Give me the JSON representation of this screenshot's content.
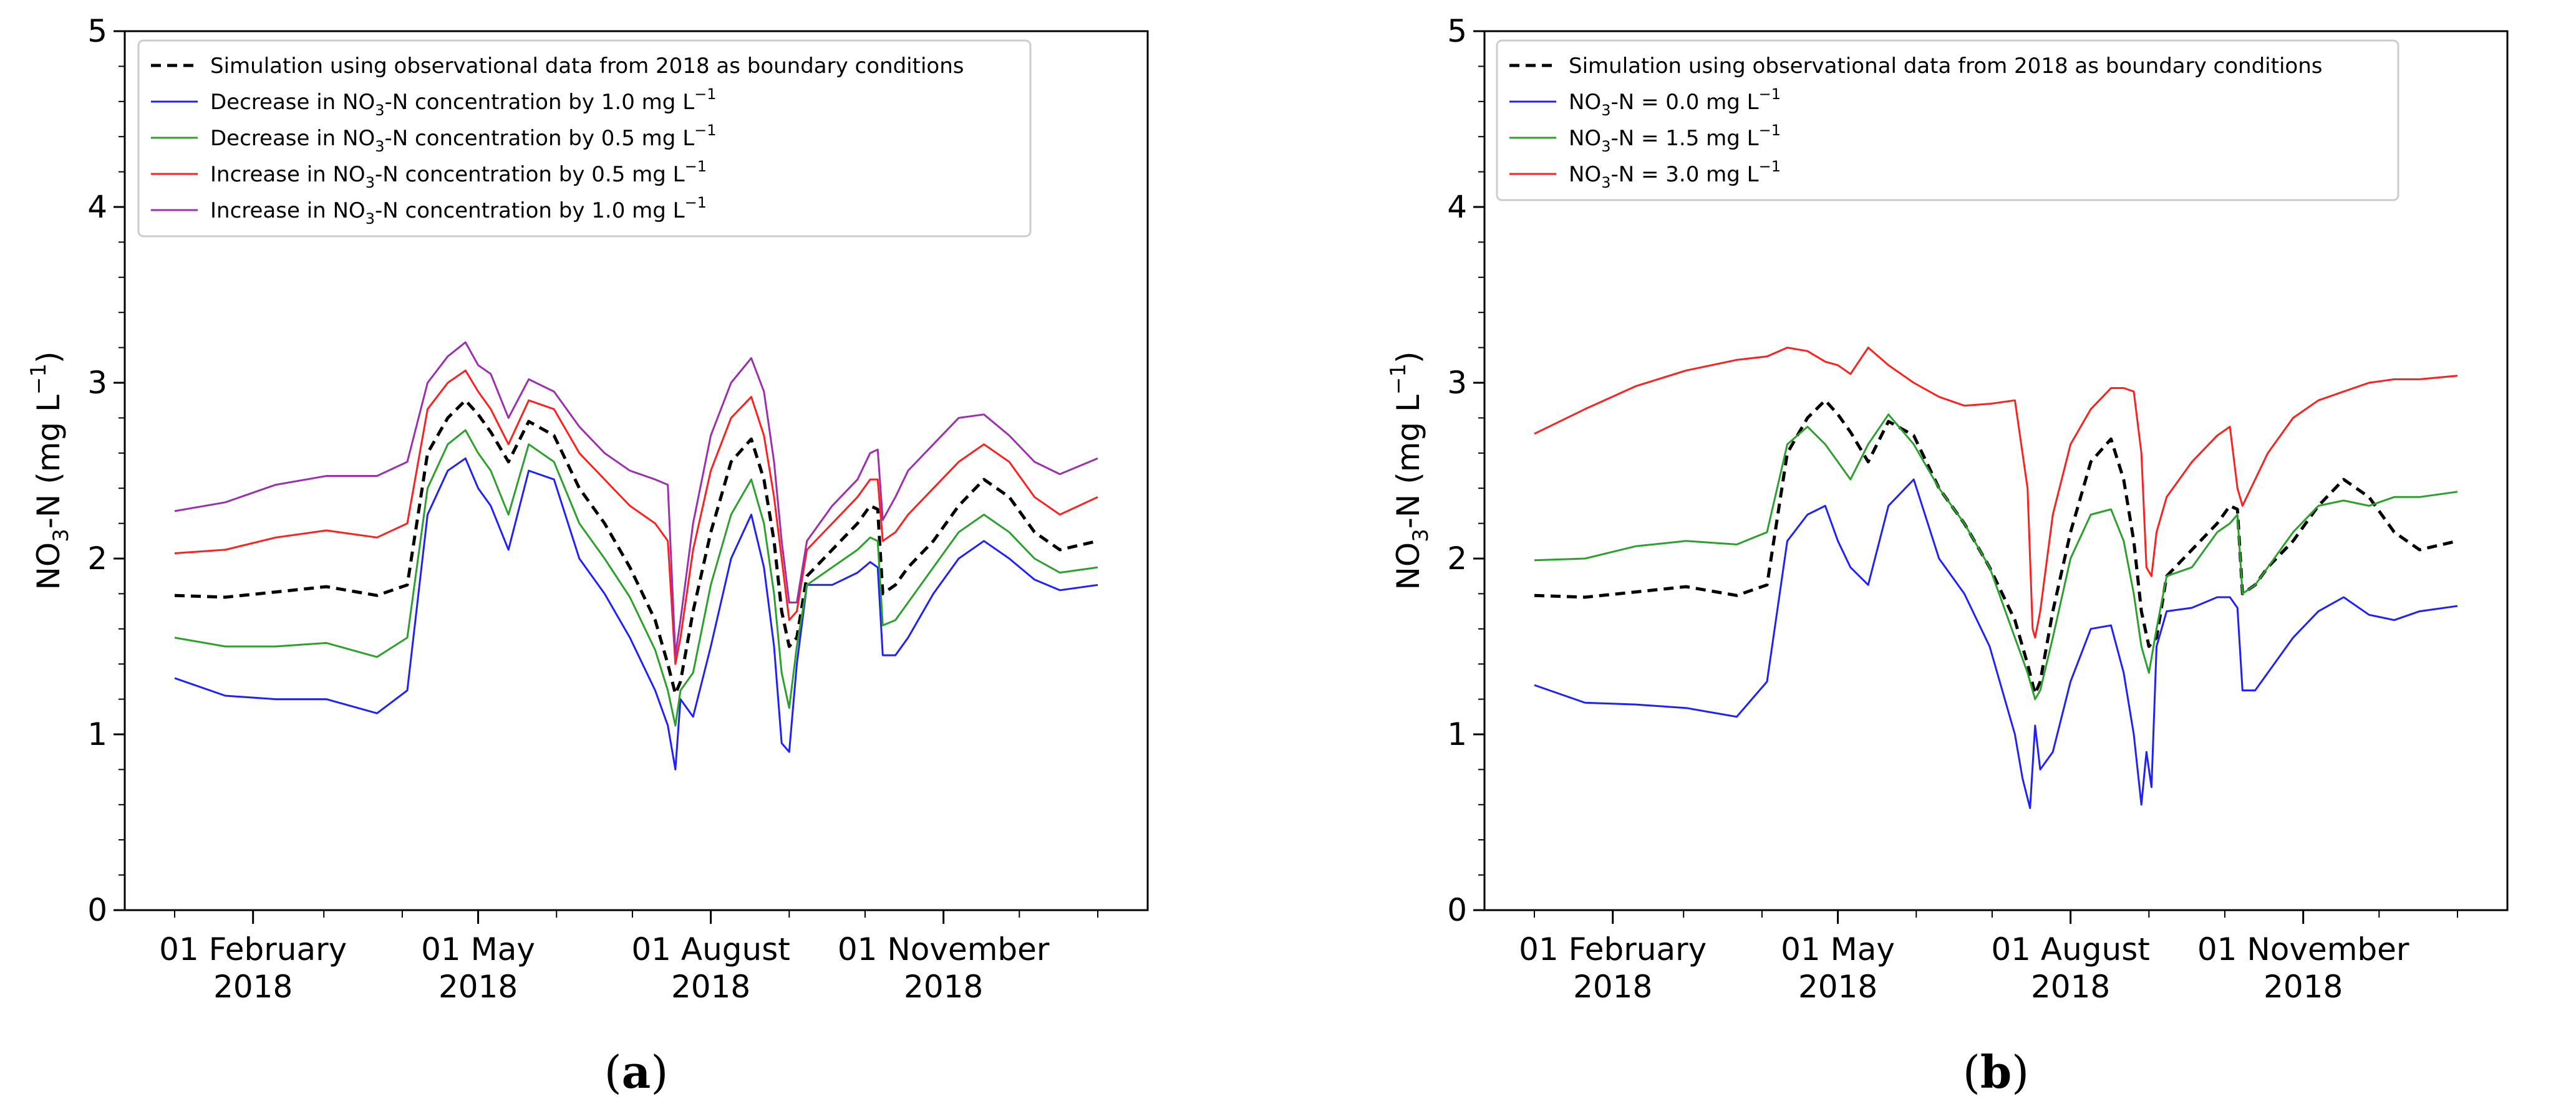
{
  "chart_data": [
    {
      "type": "line",
      "panel": "a",
      "panel_label_open": "(",
      "panel_label_letter": "a",
      "panel_label_close": ")",
      "ylabel": "NO3-N (mg L-1)",
      "ylabel_parts": {
        "a": "NO",
        "b": "3",
        "c": "-N (mg L",
        "d": "−1",
        "e": ")"
      },
      "ylim": [
        0,
        5
      ],
      "yticks": [
        "0",
        "1",
        "2",
        "3",
        "4",
        "5"
      ],
      "x_unit": "day of year 2018",
      "xlim": [
        0,
        365
      ],
      "xticks": [
        {
          "day": 31,
          "line1": "01 February",
          "line2": "2018"
        },
        {
          "day": 120,
          "line1": "01 May",
          "line2": "2018"
        },
        {
          "day": 212,
          "line1": "01 August",
          "line2": "2018"
        },
        {
          "day": 304,
          "line1": "01 November",
          "line2": "2018"
        }
      ],
      "legend": [
        {
          "series": "baseline",
          "pre": "Simulation using observational data from 2018 as boundary conditions",
          "sub": "",
          "post": "",
          "sup": ""
        },
        {
          "series": "dec10",
          "pre": "Decrease in NO",
          "sub": "3",
          "post": "-N concentration by 1.0 mg L",
          "sup": "−1"
        },
        {
          "series": "dec05",
          "pre": "Decrease in NO",
          "sub": "3",
          "post": "-N concentration by 0.5 mg L",
          "sup": "−1"
        },
        {
          "series": "inc05",
          "pre": "Increase in NO",
          "sub": "3",
          "post": "-N concentration by 0.5 mg L",
          "sup": "−1"
        },
        {
          "series": "inc10",
          "pre": "Increase in NO",
          "sub": "3",
          "post": "-N concentration by 1.0 mg L",
          "sup": "−1"
        }
      ],
      "series": [
        {
          "id": "baseline",
          "name": "Simulation using observational data from 2018 as boundary conditions",
          "color": "#000000",
          "dash": true,
          "x": [
            0,
            20,
            40,
            60,
            80,
            92,
            100,
            108,
            115,
            120,
            125,
            132,
            140,
            150,
            160,
            170,
            180,
            190,
            195,
            198,
            200,
            205,
            212,
            220,
            228,
            233,
            237,
            240,
            243,
            246,
            250,
            260,
            270,
            275,
            278,
            280,
            285,
            290,
            300,
            310,
            320,
            330,
            340,
            350,
            365
          ],
          "y": [
            1.79,
            1.78,
            1.81,
            1.84,
            1.79,
            1.85,
            2.6,
            2.8,
            2.9,
            2.82,
            2.72,
            2.55,
            2.78,
            2.7,
            2.4,
            2.2,
            1.95,
            1.65,
            1.4,
            1.23,
            1.3,
            1.7,
            2.15,
            2.55,
            2.68,
            2.45,
            2.1,
            1.7,
            1.5,
            1.55,
            1.9,
            2.05,
            2.2,
            2.3,
            2.28,
            1.8,
            1.85,
            1.95,
            2.1,
            2.3,
            2.45,
            2.35,
            2.15,
            2.05,
            2.1
          ]
        },
        {
          "id": "dec10",
          "name": "Decrease in NO3-N concentration by 1.0 mg L-1",
          "color": "#1f1fff",
          "dash": false,
          "x": [
            0,
            20,
            40,
            60,
            80,
            92,
            100,
            108,
            115,
            120,
            125,
            132,
            140,
            150,
            160,
            170,
            180,
            190,
            195,
            198,
            200,
            205,
            212,
            220,
            228,
            233,
            237,
            240,
            243,
            246,
            250,
            260,
            270,
            275,
            278,
            280,
            285,
            290,
            300,
            310,
            320,
            330,
            340,
            350,
            365
          ],
          "y": [
            1.32,
            1.22,
            1.2,
            1.2,
            1.12,
            1.25,
            2.25,
            2.5,
            2.57,
            2.4,
            2.3,
            2.05,
            2.5,
            2.45,
            2.0,
            1.8,
            1.55,
            1.25,
            1.05,
            0.8,
            1.2,
            1.1,
            1.5,
            2.0,
            2.25,
            1.95,
            1.5,
            0.95,
            0.9,
            1.4,
            1.85,
            1.85,
            1.92,
            1.98,
            1.95,
            1.45,
            1.45,
            1.55,
            1.8,
            2.0,
            2.1,
            2.0,
            1.88,
            1.82,
            1.85
          ]
        },
        {
          "id": "dec05",
          "name": "Decrease in NO3-N concentration by 0.5 mg L-1",
          "color": "#2ca02c",
          "dash": false,
          "x": [
            0,
            20,
            40,
            60,
            80,
            92,
            100,
            108,
            115,
            120,
            125,
            132,
            140,
            150,
            160,
            170,
            180,
            190,
            195,
            198,
            200,
            205,
            212,
            220,
            228,
            233,
            237,
            240,
            243,
            246,
            250,
            260,
            270,
            275,
            278,
            280,
            285,
            290,
            300,
            310,
            320,
            330,
            340,
            350,
            365
          ],
          "y": [
            1.55,
            1.5,
            1.5,
            1.52,
            1.44,
            1.55,
            2.4,
            2.65,
            2.73,
            2.6,
            2.5,
            2.25,
            2.65,
            2.55,
            2.2,
            2.0,
            1.78,
            1.48,
            1.25,
            1.05,
            1.25,
            1.35,
            1.85,
            2.25,
            2.45,
            2.2,
            1.8,
            1.35,
            1.15,
            1.5,
            1.85,
            1.95,
            2.05,
            2.12,
            2.1,
            1.62,
            1.65,
            1.75,
            1.95,
            2.15,
            2.25,
            2.15,
            2.0,
            1.92,
            1.95
          ]
        },
        {
          "id": "inc05",
          "name": "Increase in NO3-N concentration by 0.5 mg L-1",
          "color": "#ff1f1f",
          "dash": false,
          "x": [
            0,
            20,
            40,
            60,
            80,
            92,
            100,
            108,
            115,
            120,
            125,
            132,
            140,
            150,
            160,
            170,
            180,
            190,
            195,
            198,
            200,
            205,
            212,
            220,
            228,
            233,
            237,
            240,
            243,
            246,
            250,
            260,
            270,
            275,
            278,
            280,
            285,
            290,
            300,
            310,
            320,
            330,
            340,
            350,
            365
          ],
          "y": [
            2.03,
            2.05,
            2.12,
            2.16,
            2.12,
            2.2,
            2.85,
            3.0,
            3.07,
            2.95,
            2.85,
            2.65,
            2.9,
            2.85,
            2.6,
            2.45,
            2.3,
            2.2,
            2.1,
            1.4,
            1.55,
            2.05,
            2.5,
            2.8,
            2.92,
            2.7,
            2.35,
            2.0,
            1.65,
            1.7,
            2.05,
            2.2,
            2.35,
            2.45,
            2.45,
            2.1,
            2.15,
            2.25,
            2.4,
            2.55,
            2.65,
            2.55,
            2.35,
            2.25,
            2.35
          ]
        },
        {
          "id": "inc10",
          "name": "Increase in NO3-N concentration by 1.0 mg L-1",
          "color": "#9b2fae",
          "dash": false,
          "x": [
            0,
            20,
            40,
            60,
            80,
            92,
            100,
            108,
            115,
            120,
            125,
            132,
            140,
            150,
            160,
            170,
            180,
            190,
            195,
            198,
            200,
            205,
            212,
            220,
            228,
            233,
            237,
            240,
            243,
            246,
            250,
            260,
            270,
            275,
            278,
            280,
            285,
            290,
            300,
            310,
            320,
            330,
            340,
            350,
            365
          ],
          "y": [
            2.27,
            2.32,
            2.42,
            2.47,
            2.47,
            2.55,
            3.0,
            3.15,
            3.23,
            3.1,
            3.05,
            2.8,
            3.02,
            2.95,
            2.75,
            2.6,
            2.5,
            2.45,
            2.42,
            1.45,
            1.65,
            2.2,
            2.7,
            3.0,
            3.14,
            2.95,
            2.55,
            2.1,
            1.75,
            1.75,
            2.1,
            2.3,
            2.45,
            2.6,
            2.62,
            2.22,
            2.35,
            2.5,
            2.65,
            2.8,
            2.82,
            2.7,
            2.55,
            2.48,
            2.57
          ]
        }
      ]
    },
    {
      "type": "line",
      "panel": "b",
      "panel_label_open": "(",
      "panel_label_letter": "b",
      "panel_label_close": ")",
      "ylabel": "NO3-N (mg L-1)",
      "ylabel_parts": {
        "a": "NO",
        "b": "3",
        "c": "-N (mg L",
        "d": "−1",
        "e": ")"
      },
      "ylim": [
        0,
        5
      ],
      "yticks": [
        "0",
        "1",
        "2",
        "3",
        "4",
        "5"
      ],
      "x_unit": "day of year 2018",
      "xlim": [
        0,
        365
      ],
      "xticks": [
        {
          "day": 31,
          "line1": "01 February",
          "line2": "2018"
        },
        {
          "day": 120,
          "line1": "01 May",
          "line2": "2018"
        },
        {
          "day": 212,
          "line1": "01 August",
          "line2": "2018"
        },
        {
          "day": 304,
          "line1": "01 November",
          "line2": "2018"
        }
      ],
      "legend": [
        {
          "series": "baseline",
          "pre": "Simulation using observational data from 2018 as boundary conditions",
          "sub": "",
          "post": "",
          "sup": ""
        },
        {
          "series": "c00",
          "pre": "NO",
          "sub": "3",
          "post": "-N = 0.0 mg L",
          "sup": "−1"
        },
        {
          "series": "c15",
          "pre": "NO",
          "sub": "3",
          "post": "-N = 1.5 mg L",
          "sup": "−1"
        },
        {
          "series": "c30",
          "pre": "NO",
          "sub": "3",
          "post": "-N = 3.0 mg L",
          "sup": "−1"
        }
      ],
      "series": [
        {
          "id": "baseline",
          "name": "Simulation using observational data from 2018 as boundary conditions",
          "color": "#000000",
          "dash": true,
          "x": [
            0,
            20,
            40,
            60,
            80,
            92,
            100,
            108,
            115,
            120,
            125,
            132,
            140,
            150,
            160,
            170,
            180,
            190,
            195,
            198,
            200,
            205,
            212,
            220,
            228,
            233,
            237,
            240,
            243,
            246,
            250,
            260,
            270,
            275,
            278,
            280,
            285,
            290,
            300,
            310,
            320,
            330,
            340,
            350,
            365
          ],
          "y": [
            1.79,
            1.78,
            1.81,
            1.84,
            1.79,
            1.85,
            2.6,
            2.8,
            2.9,
            2.82,
            2.72,
            2.55,
            2.78,
            2.7,
            2.4,
            2.2,
            1.95,
            1.65,
            1.4,
            1.23,
            1.3,
            1.7,
            2.15,
            2.55,
            2.68,
            2.45,
            2.1,
            1.7,
            1.5,
            1.55,
            1.9,
            2.05,
            2.2,
            2.3,
            2.28,
            1.8,
            1.85,
            1.95,
            2.1,
            2.3,
            2.45,
            2.35,
            2.15,
            2.05,
            2.1
          ]
        },
        {
          "id": "c00",
          "name": "NO3-N = 0.0 mg L-1",
          "color": "#1f1fff",
          "dash": false,
          "x": [
            0,
            20,
            40,
            60,
            80,
            92,
            100,
            108,
            115,
            120,
            125,
            132,
            140,
            150,
            160,
            170,
            180,
            190,
            193,
            196,
            198,
            200,
            205,
            212,
            220,
            228,
            233,
            237,
            240,
            242,
            244,
            246,
            250,
            260,
            270,
            275,
            278,
            280,
            285,
            290,
            300,
            310,
            320,
            330,
            340,
            350,
            365
          ],
          "y": [
            1.28,
            1.18,
            1.17,
            1.15,
            1.1,
            1.3,
            2.1,
            2.25,
            2.3,
            2.1,
            1.95,
            1.85,
            2.3,
            2.45,
            2.0,
            1.8,
            1.5,
            1.0,
            0.75,
            0.58,
            1.05,
            0.8,
            0.9,
            1.3,
            1.6,
            1.62,
            1.35,
            1.0,
            0.6,
            0.9,
            0.7,
            1.5,
            1.7,
            1.72,
            1.78,
            1.78,
            1.72,
            1.25,
            1.25,
            1.35,
            1.55,
            1.7,
            1.78,
            1.68,
            1.65,
            1.7,
            1.73
          ]
        },
        {
          "id": "c15",
          "name": "NO3-N = 1.5 mg L-1",
          "color": "#2ca02c",
          "dash": false,
          "x": [
            0,
            20,
            40,
            60,
            80,
            92,
            100,
            108,
            115,
            120,
            125,
            132,
            140,
            150,
            160,
            170,
            180,
            190,
            195,
            198,
            200,
            205,
            212,
            220,
            228,
            233,
            237,
            240,
            243,
            246,
            250,
            260,
            270,
            275,
            278,
            280,
            285,
            290,
            300,
            310,
            320,
            330,
            340,
            350,
            365
          ],
          "y": [
            1.99,
            2.0,
            2.07,
            2.1,
            2.08,
            2.15,
            2.65,
            2.75,
            2.65,
            2.55,
            2.45,
            2.65,
            2.82,
            2.65,
            2.4,
            2.2,
            1.95,
            1.55,
            1.35,
            1.2,
            1.25,
            1.55,
            2.0,
            2.25,
            2.28,
            2.1,
            1.8,
            1.5,
            1.35,
            1.6,
            1.9,
            1.95,
            2.15,
            2.2,
            2.25,
            1.8,
            1.85,
            1.95,
            2.15,
            2.3,
            2.33,
            2.3,
            2.35,
            2.35,
            2.38
          ]
        },
        {
          "id": "c30",
          "name": "NO3-N = 3.0 mg L-1",
          "color": "#ff1f1f",
          "dash": false,
          "x": [
            0,
            20,
            40,
            60,
            80,
            92,
            100,
            108,
            115,
            120,
            125,
            132,
            140,
            150,
            160,
            170,
            180,
            190,
            195,
            197,
            198,
            200,
            205,
            212,
            220,
            228,
            233,
            237,
            240,
            242,
            244,
            246,
            250,
            260,
            270,
            275,
            278,
            280,
            285,
            290,
            300,
            310,
            320,
            330,
            340,
            350,
            365
          ],
          "y": [
            2.71,
            2.85,
            2.98,
            3.07,
            3.13,
            3.15,
            3.2,
            3.18,
            3.12,
            3.1,
            3.05,
            3.2,
            3.1,
            3.0,
            2.92,
            2.87,
            2.88,
            2.9,
            2.4,
            1.6,
            1.55,
            1.7,
            2.25,
            2.65,
            2.85,
            2.97,
            2.97,
            2.95,
            2.6,
            1.95,
            1.9,
            2.15,
            2.35,
            2.55,
            2.7,
            2.75,
            2.4,
            2.3,
            2.45,
            2.6,
            2.8,
            2.9,
            2.95,
            3.0,
            3.02,
            3.02,
            3.04
          ]
        }
      ]
    }
  ]
}
